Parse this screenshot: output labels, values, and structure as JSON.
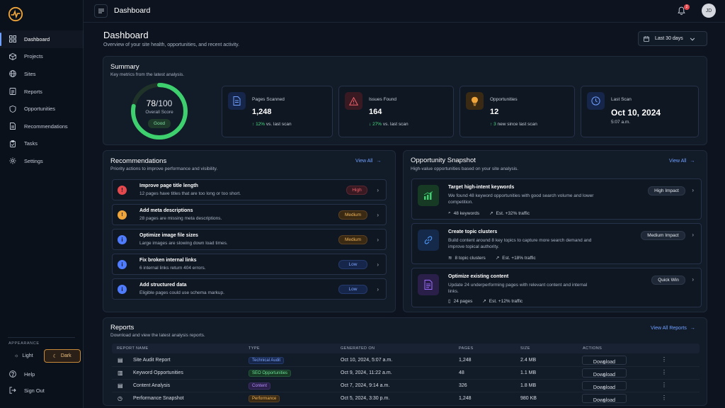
{
  "header": {
    "title": "Dashboard",
    "notification_count": "2",
    "avatar_initials": "JD"
  },
  "sidebar": {
    "items": [
      {
        "label": "Dashboard",
        "icon": "grid-icon",
        "active": true
      },
      {
        "label": "Projects",
        "icon": "cube-icon"
      },
      {
        "label": "Sites",
        "icon": "globe-icon"
      },
      {
        "label": "Reports",
        "icon": "report-icon"
      },
      {
        "label": "Opportunities",
        "icon": "shield-icon"
      },
      {
        "label": "Recommendations",
        "icon": "document-icon"
      },
      {
        "label": "Tasks",
        "icon": "clipboard-icon"
      },
      {
        "label": "Settings",
        "icon": "gear-icon"
      }
    ],
    "appearance_label": "APPEARANCE",
    "theme_light": "Light",
    "theme_dark": "Dark",
    "help": "Help",
    "sign_out": "Sign Out"
  },
  "page": {
    "title": "Dashboard",
    "subtitle": "Overview of your site health, opportunities, and recent activity.",
    "date_range": "Last 30 days"
  },
  "summary": {
    "title": "Summary",
    "subtitle": "Key metrics from the latest analysis.",
    "score": "78",
    "score_max": "/100",
    "score_fraction": 0.78,
    "score_label": "Overall Score",
    "score_status": "Good",
    "metrics": [
      {
        "label": "Pages Scanned",
        "value": "1,248",
        "delta": "12%",
        "delta_text": "vs. last scan",
        "accent": "#4f7cff"
      },
      {
        "label": "Issues Found",
        "value": "164",
        "delta": "27%",
        "delta_text": "vs. last scan",
        "accent": "#e5484d"
      },
      {
        "label": "Opportunities",
        "value": "12",
        "delta": "3",
        "delta_text": "new since last scan",
        "accent": "#f0a53a"
      },
      {
        "label": "Last Scan",
        "value": "Oct 10, 2024",
        "delta": "",
        "delta_text": "5:07 a.m.",
        "accent": "#4f7cff"
      }
    ]
  },
  "recommendations": {
    "title": "Recommendations",
    "subtitle": "Priority actions to improve performance and visibility.",
    "view_all": "View All",
    "items": [
      {
        "title": "Improve page title length",
        "desc": "12 pages have titles that are too long or too short.",
        "priority": "High",
        "icon_color": "#e5484d"
      },
      {
        "title": "Add meta descriptions",
        "desc": "28 pages are missing meta descriptions.",
        "priority": "Medium",
        "icon_color": "#f0a53a"
      },
      {
        "title": "Optimize image file sizes",
        "desc": "Large images are slowing down load times.",
        "priority": "Medium",
        "icon_color": "#4f7cff"
      },
      {
        "title": "Fix broken internal links",
        "desc": "6 internal links return 404 errors.",
        "priority": "Low",
        "icon_color": "#4f7cff"
      },
      {
        "title": "Add structured data",
        "desc": "Eligible pages could use schema markup.",
        "priority": "Low",
        "icon_color": "#4f7cff"
      }
    ]
  },
  "opportunities": {
    "title": "Opportunity Snapshot",
    "subtitle": "High-value opportunities based on your site analysis.",
    "view_all": "View All",
    "items": [
      {
        "title": "Target high-intent keywords",
        "desc": "We found 48 keyword opportunities with good search volume and lower competition.",
        "meta1": "48 keywords",
        "meta2": "Est. +32% traffic",
        "badge": "High Impact",
        "color": "#3ecf6e"
      },
      {
        "title": "Create topic clusters",
        "desc": "Build content around 8 key topics to capture more search demand and improve topical authority.",
        "meta1": "8 topic clusters",
        "meta2": "Est. +18% traffic",
        "badge": "Medium Impact",
        "color": "#4f9cff"
      },
      {
        "title": "Optimize existing content",
        "desc": "Update 24 underperforming pages with relevant content and internal links.",
        "meta1": "24 pages",
        "meta2": "Est. +12% traffic",
        "badge": "Quick Win",
        "color": "#9b6bff"
      }
    ]
  },
  "reports": {
    "title": "Reports",
    "subtitle": "Download and view the latest analysis reports.",
    "view_all": "View All Reports",
    "columns": [
      "REPORT NAME",
      "TYPE",
      "GENERATED ON",
      "PAGES",
      "SIZE",
      "ACTIONS"
    ],
    "download_label": "Download",
    "rows": [
      {
        "name": "Site Audit Report",
        "type": "Technical Audit",
        "date": "Oct 10, 2024, 5:07 a.m.",
        "pages": "1,248",
        "size": "2.4 MB",
        "type_color": "#4f7cff"
      },
      {
        "name": "Keyword Opportunities",
        "type": "SEO Opportunities",
        "date": "Oct 9, 2024, 11:22 a.m.",
        "pages": "48",
        "size": "1.1 MB",
        "type_color": "#3ecf6e"
      },
      {
        "name": "Content Analysis",
        "type": "Content",
        "date": "Oct 7, 2024, 9:14 a.m.",
        "pages": "326",
        "size": "1.8 MB",
        "type_color": "#9b6bff"
      },
      {
        "name": "Performance Snapshot",
        "type": "Performance",
        "date": "Oct 5, 2024, 3:30 p.m.",
        "pages": "1,248",
        "size": "980 KB",
        "type_color": "#f0a53a"
      }
    ]
  }
}
